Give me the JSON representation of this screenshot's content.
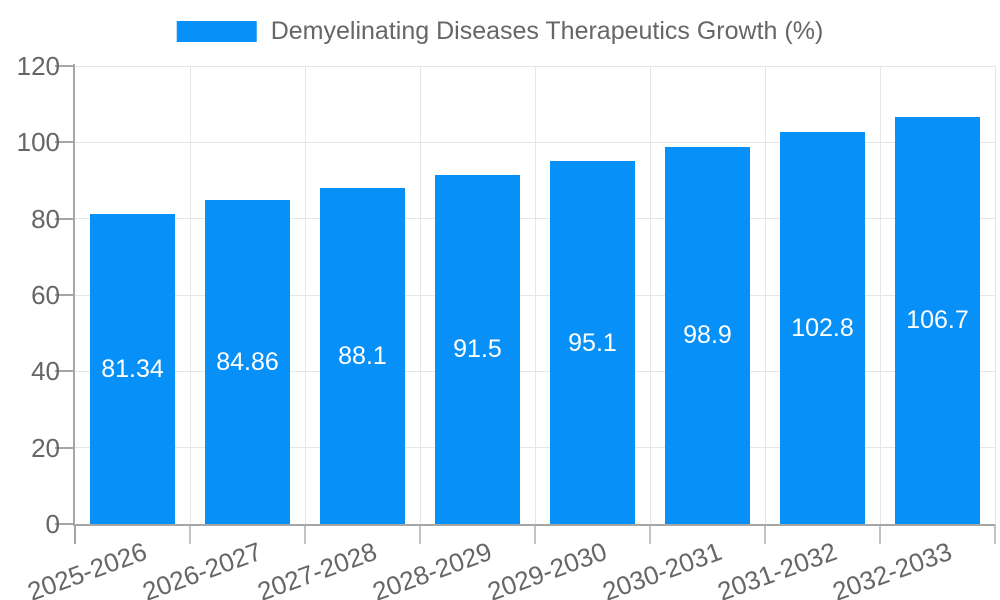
{
  "chart_data": {
    "type": "bar",
    "title": "Demyelinating Diseases Therapeutics Growth (%)",
    "xlabel": "",
    "ylabel": "",
    "categories": [
      "2025-2026",
      "2026-2027",
      "2027-2028",
      "2028-2029",
      "2029-2030",
      "2030-2031",
      "2031-2032",
      "2032-2033"
    ],
    "series": [
      {
        "name": "Demyelinating Diseases Therapeutics Growth (%)",
        "values": [
          81.34,
          84.86,
          88.1,
          91.5,
          95.1,
          98.9,
          102.8,
          106.7
        ],
        "value_labels": [
          "81.34",
          "84.86",
          "88.1",
          "91.5",
          "95.1",
          "98.9",
          "102.8",
          "106.7"
        ]
      }
    ],
    "ylim": [
      0,
      120
    ],
    "yticks": [
      0,
      20,
      40,
      60,
      80,
      100,
      120
    ],
    "grid": true,
    "legend_position": "top-center",
    "value_label_position": "inside-center",
    "x_label_rotation_deg": -20,
    "colors": {
      "bar": "#0890f9",
      "value_label": "#ffffff",
      "axis_text": "#666666",
      "legend_text": "#666666",
      "grid_line": "#e6e6e6",
      "axis_line": "#a6a6a6",
      "tick": "#c2c2c2",
      "background": "#ffffff"
    }
  }
}
